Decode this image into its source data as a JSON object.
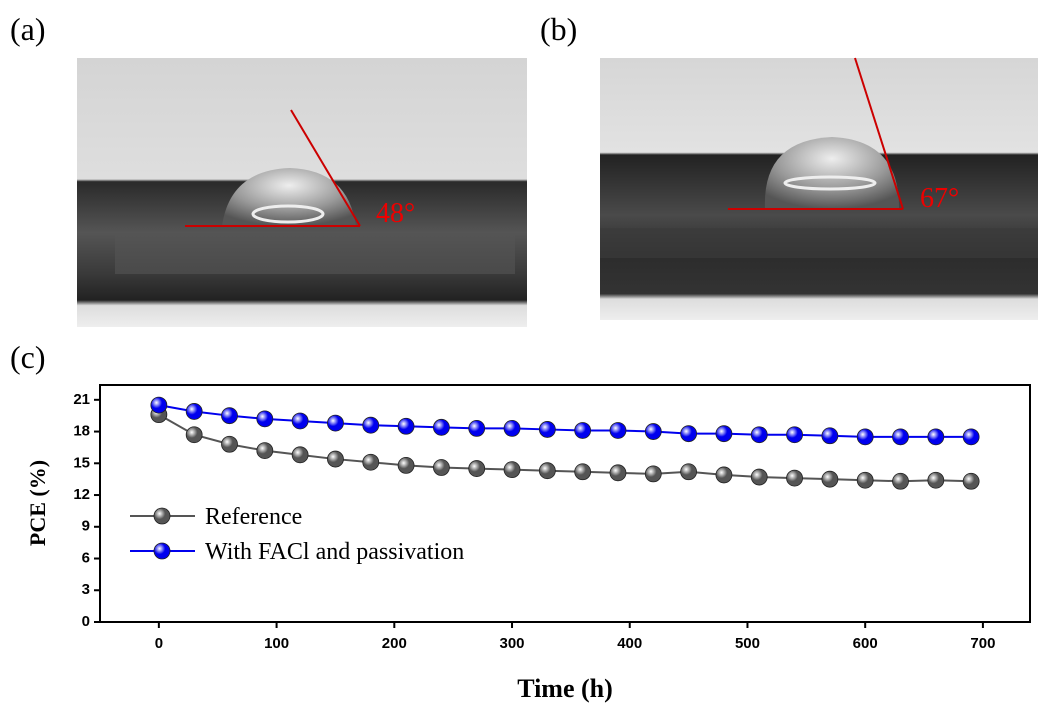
{
  "panels": [
    {
      "label": "(a)",
      "angle_label": "48°"
    },
    {
      "label": "(b)",
      "angle_label": "67°"
    },
    {
      "label": "(c)"
    }
  ],
  "chart_data": {
    "type": "line",
    "x_label": "Time (h)",
    "y_label": "PCE (%)",
    "x": [
      0,
      30,
      60,
      90,
      120,
      150,
      180,
      210,
      240,
      270,
      300,
      330,
      360,
      390,
      420,
      450,
      480,
      510,
      540,
      570,
      600,
      630,
      660,
      690
    ],
    "series": [
      {
        "name": "Reference",
        "color": "#555555",
        "values": [
          19.6,
          17.7,
          16.8,
          16.2,
          15.8,
          15.4,
          15.1,
          14.8,
          14.6,
          14.5,
          14.4,
          14.3,
          14.2,
          14.1,
          14.0,
          14.2,
          13.9,
          13.7,
          13.6,
          13.5,
          13.4,
          13.3,
          13.4,
          13.3
        ]
      },
      {
        "name": "With FACl and passivation",
        "color": "#0000ee",
        "values": [
          20.5,
          19.9,
          19.5,
          19.2,
          19.0,
          18.8,
          18.6,
          18.5,
          18.4,
          18.3,
          18.3,
          18.2,
          18.1,
          18.1,
          18.0,
          17.8,
          17.8,
          17.7,
          17.7,
          17.6,
          17.5,
          17.5,
          17.5,
          17.5
        ]
      }
    ],
    "xlim": [
      -50,
      740
    ],
    "ylim": [
      0,
      22.4
    ],
    "xticks": [
      0,
      100,
      200,
      300,
      400,
      500,
      600,
      700
    ],
    "yticks": [
      0,
      3,
      6,
      9,
      12,
      15,
      18,
      21
    ],
    "grid": false,
    "legend": "lower left"
  }
}
